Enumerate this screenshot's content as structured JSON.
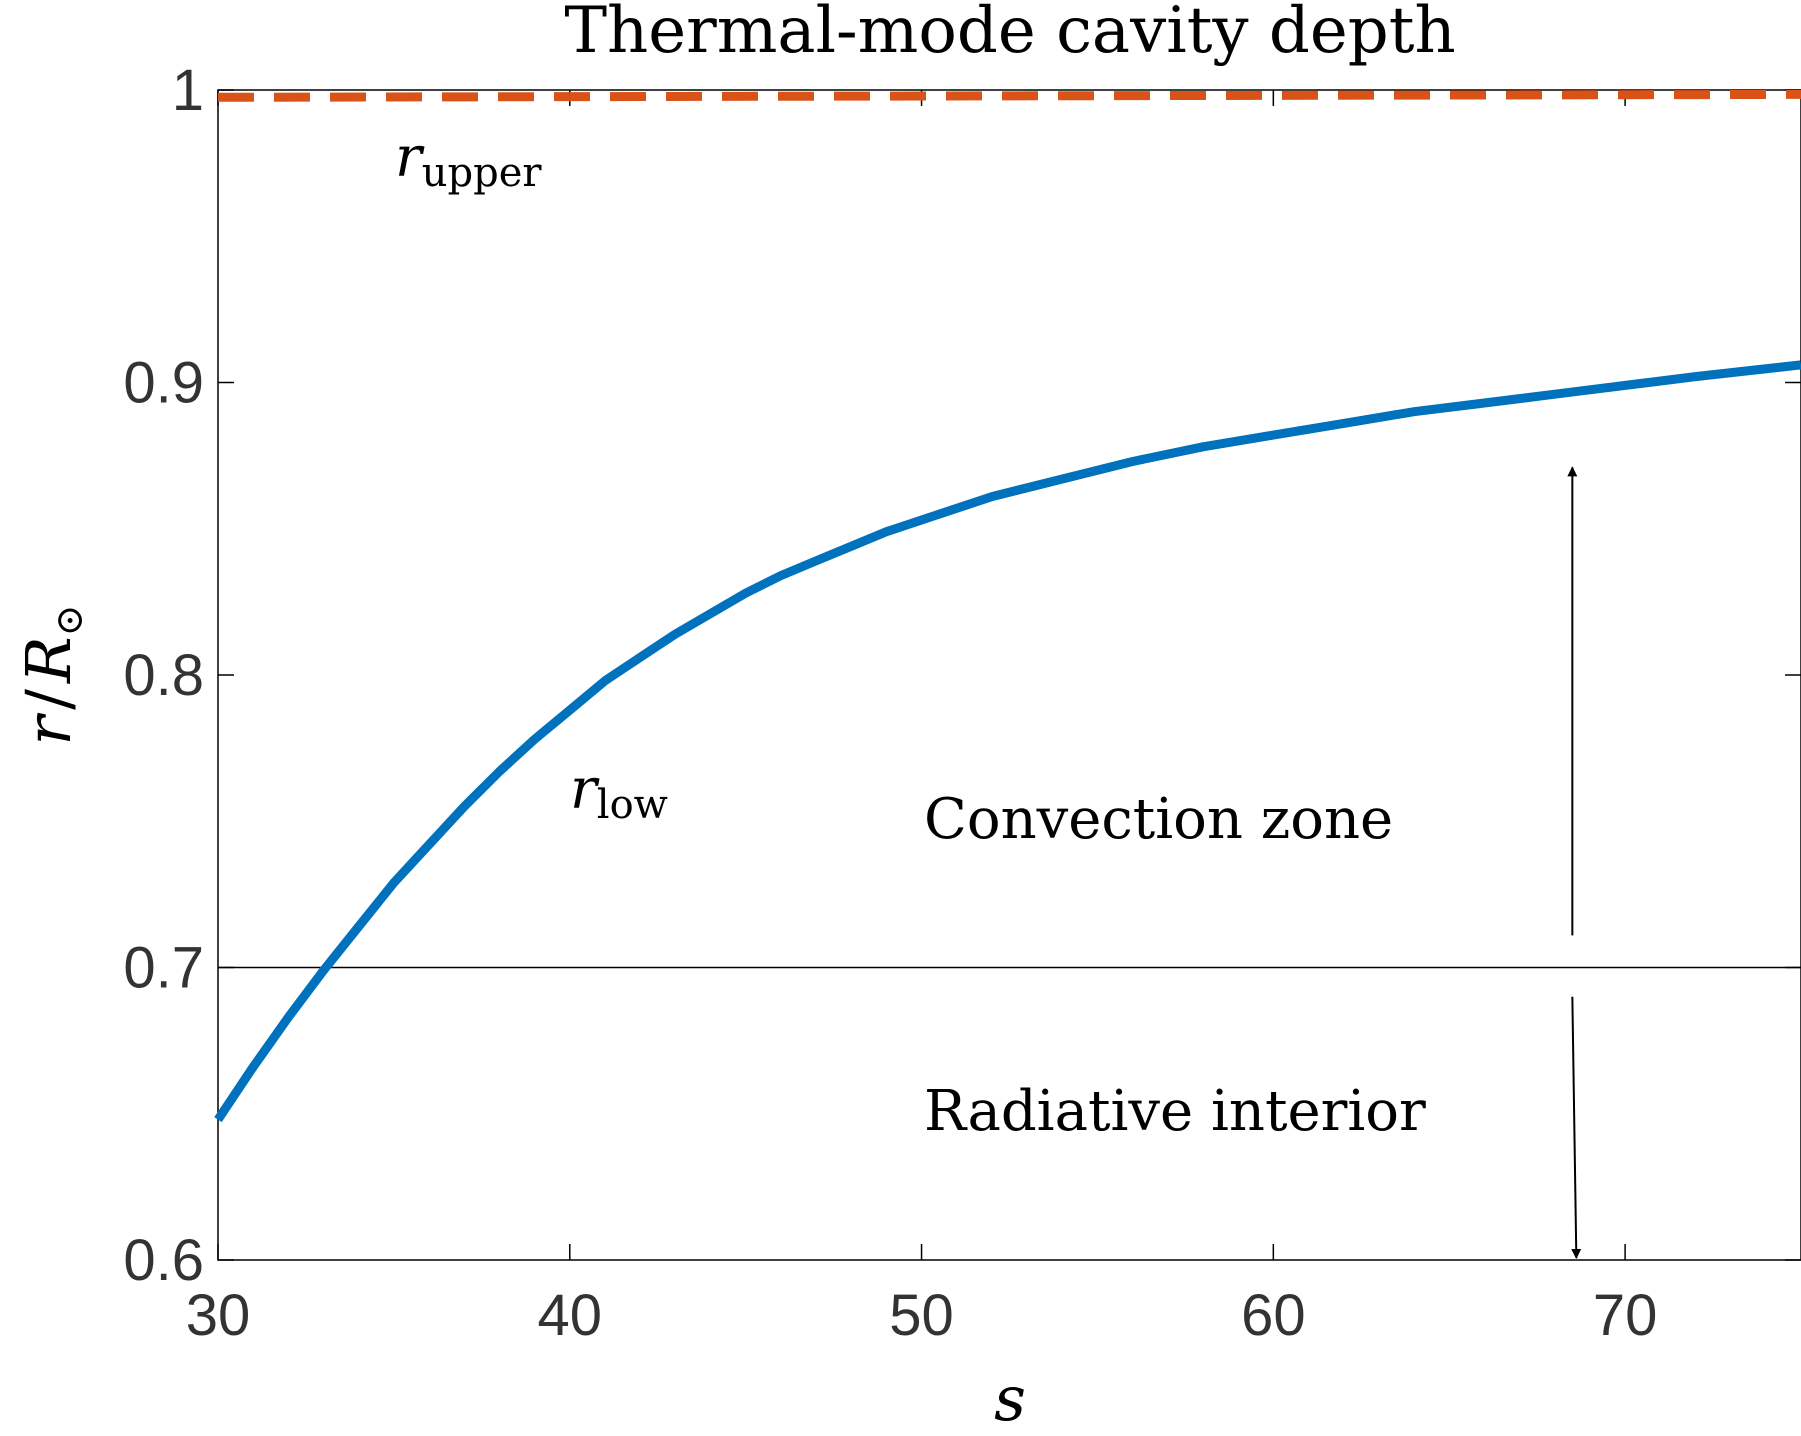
{
  "chart_data": {
    "type": "line",
    "title": "Thermal-mode cavity depth",
    "xlabel": "s",
    "ylabel": {
      "italic_r": "r",
      "slash": "/",
      "italic_R": "R",
      "sub": "⊙"
    },
    "xlim": [
      30,
      75
    ],
    "ylim": [
      0.6,
      1.0
    ],
    "xticks": [
      30,
      40,
      50,
      60,
      70
    ],
    "xtick_labels": [
      "30",
      "40",
      "50",
      "60",
      "70"
    ],
    "yticks": [
      0.6,
      0.7,
      0.8,
      0.9,
      1.0
    ],
    "ytick_labels": [
      "0.6",
      "0.7",
      "0.8",
      "0.9",
      "1"
    ],
    "grid": false,
    "series": [
      {
        "name": "r_low",
        "label": {
          "base": "r",
          "sub": "low"
        },
        "color": "#0072BD",
        "style": "solid",
        "x": [
          30,
          31,
          32,
          33,
          34,
          35,
          36,
          37,
          38,
          39,
          40,
          41,
          42,
          43,
          44,
          45,
          46,
          47,
          48,
          49,
          50,
          52,
          54,
          56,
          58,
          60,
          62,
          64,
          66,
          68,
          70,
          72,
          75
        ],
        "y": [
          0.648,
          0.666,
          0.683,
          0.699,
          0.714,
          0.729,
          0.742,
          0.755,
          0.767,
          0.778,
          0.788,
          0.798,
          0.806,
          0.814,
          0.821,
          0.828,
          0.834,
          0.839,
          0.844,
          0.849,
          0.853,
          0.861,
          0.867,
          0.873,
          0.878,
          0.882,
          0.886,
          0.89,
          0.893,
          0.896,
          0.899,
          0.902,
          0.906
        ]
      },
      {
        "name": "r_upper",
        "label": {
          "base": "r",
          "sub": "upper"
        },
        "color": "#D95319",
        "style": "dashed",
        "x": [
          30,
          75
        ],
        "y": [
          0.9975,
          0.9985
        ]
      }
    ],
    "reference_line": {
      "y": 0.7,
      "color": "#000000"
    },
    "annotations": {
      "convection_zone": "Convection zone",
      "radiative_interior": "Radiative interior",
      "arrow_up": {
        "x": 68.5,
        "from_y": 0.711,
        "to_y": 0.871
      },
      "arrow_down": {
        "x": 68.5,
        "from_y": 0.69,
        "to_y": 0.6
      }
    }
  }
}
